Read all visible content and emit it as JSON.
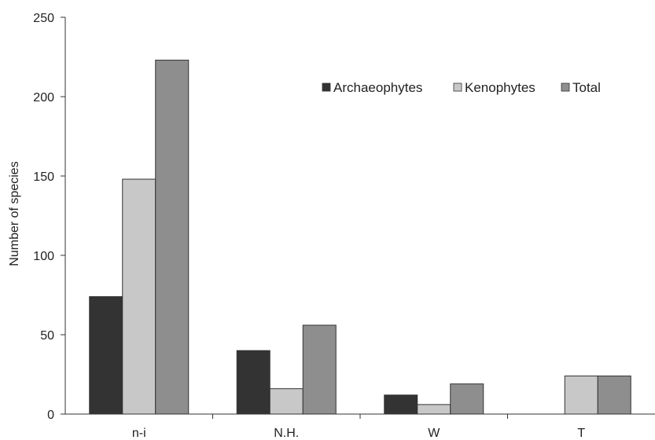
{
  "chart_data": {
    "type": "bar",
    "categories": [
      "n-i",
      "N.H.",
      "W",
      "T"
    ],
    "series": [
      {
        "name": "Archaeophytes",
        "color": "#333333",
        "values": [
          74,
          40,
          12,
          0
        ]
      },
      {
        "name": "Kenophytes",
        "color": "#c8c8c8",
        "values": [
          148,
          16,
          6,
          24
        ]
      },
      {
        "name": "Total",
        "color": "#8e8e8e",
        "values": [
          223,
          56,
          19,
          24
        ]
      }
    ],
    "ylabel": "Number of species",
    "xlabel": "",
    "ylim": [
      0,
      250
    ],
    "yticks": [
      0,
      50,
      100,
      150,
      200,
      250
    ],
    "grid": false,
    "legend_position": "top-right"
  }
}
